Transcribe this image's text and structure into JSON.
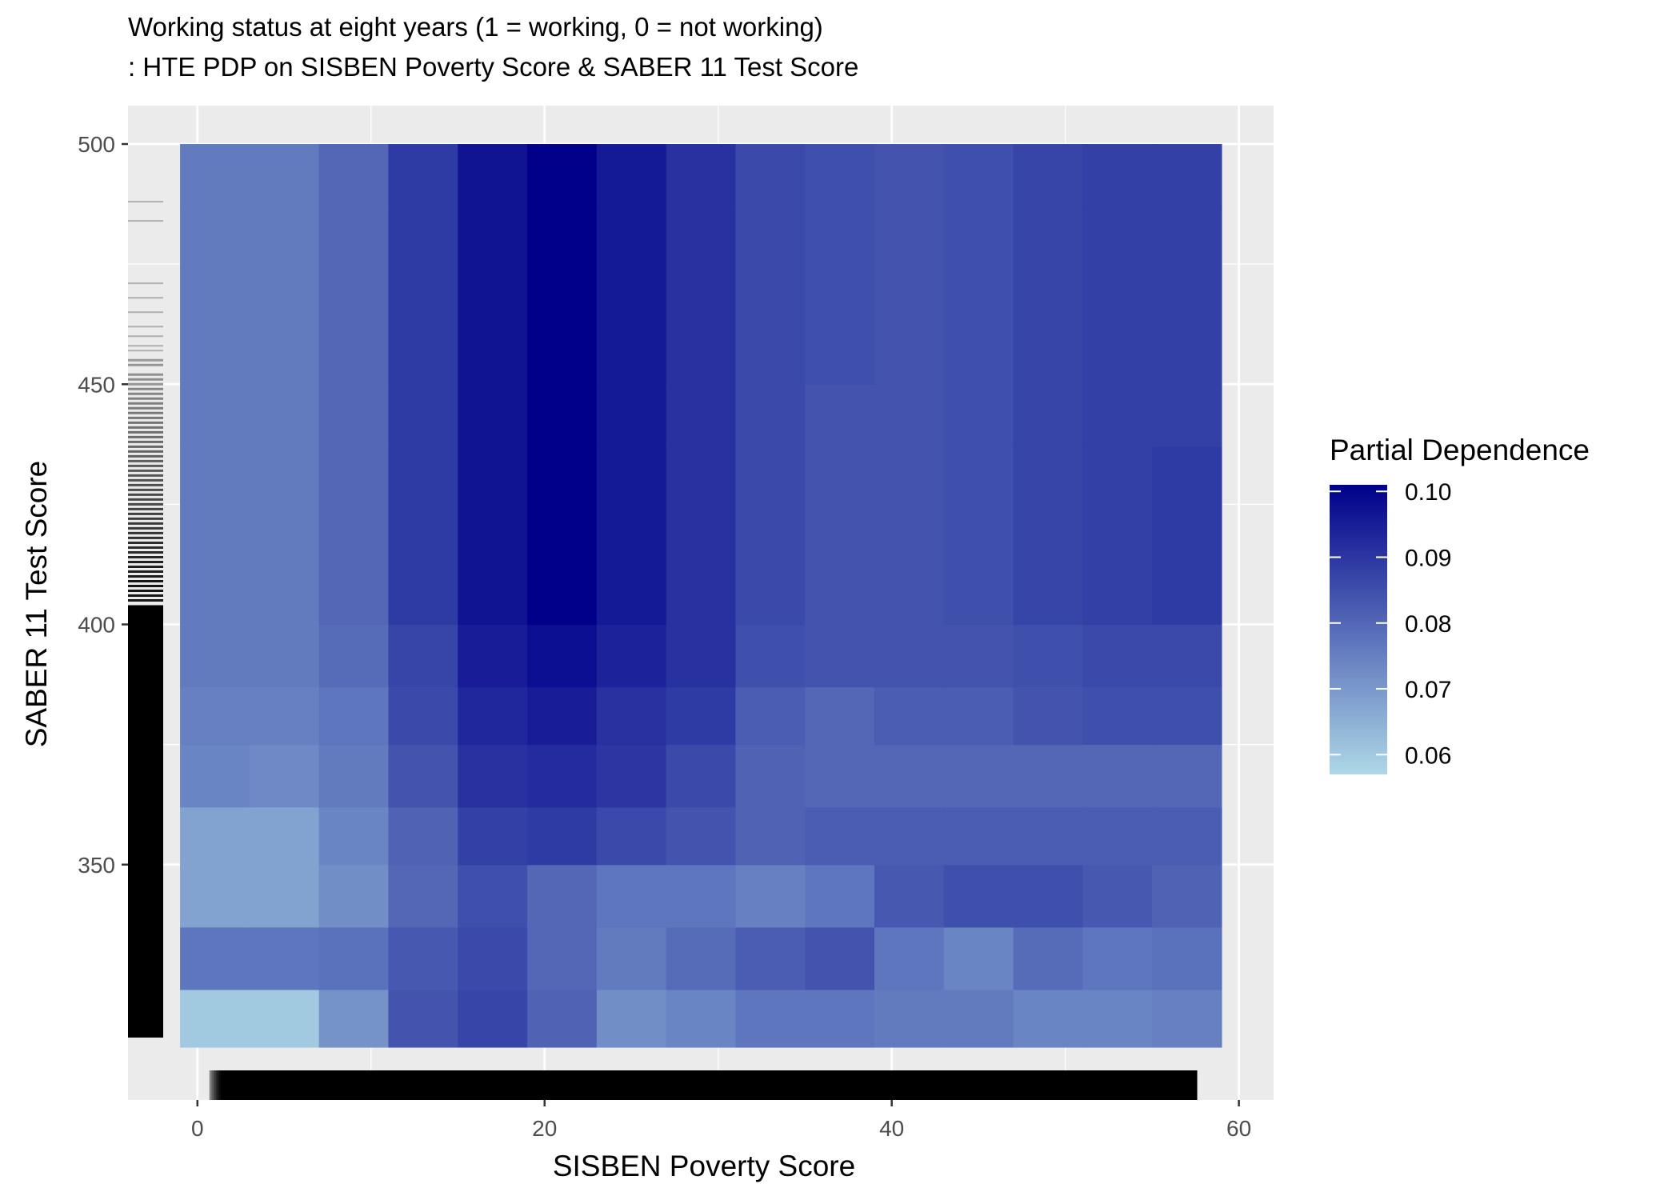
{
  "chart_data": {
    "type": "heatmap",
    "title": "Working status at eight years (1 = working, 0 = not working)",
    "subtitle": ": HTE PDP on SISBEN Poverty Score & SABER 11 Test Score",
    "xlabel": "SISBEN Poverty Score",
    "ylabel": "SABER 11 Test Score",
    "xlim": [
      -4,
      62
    ],
    "ylim": [
      301,
      508
    ],
    "x_ticks": [
      0,
      20,
      40,
      60
    ],
    "y_ticks": [
      350,
      400,
      450,
      500
    ],
    "grid": true,
    "x_centers": [
      1,
      5,
      9,
      13,
      17,
      21,
      25,
      29,
      33,
      37,
      41,
      45,
      49,
      53,
      57
    ],
    "y_centers": [
      318,
      331,
      344,
      356,
      369,
      381,
      394,
      419,
      444,
      469,
      494
    ],
    "tile_width": 4,
    "y_edges": [
      312,
      324,
      337,
      350,
      362,
      375,
      387,
      400,
      437,
      450,
      487,
      500
    ],
    "values": [
      [
        0.06,
        0.06,
        0.071,
        0.084,
        0.087,
        0.081,
        0.072,
        0.074,
        0.077,
        0.077,
        0.076,
        0.076,
        0.074,
        0.074,
        0.075
      ],
      [
        0.077,
        0.077,
        0.078,
        0.083,
        0.086,
        0.08,
        0.076,
        0.079,
        0.082,
        0.084,
        0.077,
        0.074,
        0.079,
        0.077,
        0.078
      ],
      [
        0.068,
        0.068,
        0.072,
        0.08,
        0.085,
        0.08,
        0.077,
        0.077,
        0.075,
        0.077,
        0.083,
        0.085,
        0.085,
        0.083,
        0.081
      ],
      [
        0.068,
        0.068,
        0.074,
        0.081,
        0.088,
        0.089,
        0.086,
        0.084,
        0.081,
        0.082,
        0.082,
        0.082,
        0.082,
        0.082,
        0.082
      ],
      [
        0.074,
        0.073,
        0.076,
        0.084,
        0.091,
        0.092,
        0.09,
        0.086,
        0.081,
        0.08,
        0.08,
        0.08,
        0.08,
        0.08,
        0.08
      ],
      [
        0.075,
        0.075,
        0.077,
        0.086,
        0.093,
        0.095,
        0.091,
        0.089,
        0.082,
        0.08,
        0.082,
        0.082,
        0.084,
        0.085,
        0.085
      ],
      [
        0.076,
        0.076,
        0.079,
        0.087,
        0.095,
        0.098,
        0.094,
        0.091,
        0.085,
        0.084,
        0.084,
        0.084,
        0.085,
        0.086,
        0.086
      ],
      [
        0.076,
        0.076,
        0.08,
        0.089,
        0.097,
        0.101,
        0.096,
        0.091,
        0.086,
        0.084,
        0.084,
        0.085,
        0.087,
        0.088,
        0.089
      ],
      [
        0.076,
        0.076,
        0.08,
        0.089,
        0.097,
        0.101,
        0.096,
        0.091,
        0.086,
        0.084,
        0.084,
        0.085,
        0.087,
        0.088,
        0.088
      ],
      [
        0.076,
        0.076,
        0.08,
        0.089,
        0.097,
        0.101,
        0.096,
        0.091,
        0.086,
        0.085,
        0.084,
        0.085,
        0.087,
        0.088,
        0.088
      ],
      [
        0.076,
        0.076,
        0.08,
        0.089,
        0.097,
        0.101,
        0.096,
        0.091,
        0.086,
        0.085,
        0.084,
        0.085,
        0.087,
        0.088,
        0.088
      ]
    ],
    "legend": {
      "title": "Partial Dependence",
      "position": "right",
      "min": 0.057,
      "max": 0.101,
      "ticks": [
        0.06,
        0.07,
        0.08,
        0.09,
        0.1
      ],
      "tick_labels": [
        "0.06",
        "0.07",
        "0.08",
        "0.09",
        "0.10"
      ],
      "low_color": "#add8e6",
      "high_color": "#00008b"
    },
    "rug_x_range": [
      0.7,
      57.6
    ],
    "rug_y_range": [
      314,
      488
    ],
    "panel_background": "#ebebeb",
    "grid_color": "#ffffff"
  }
}
